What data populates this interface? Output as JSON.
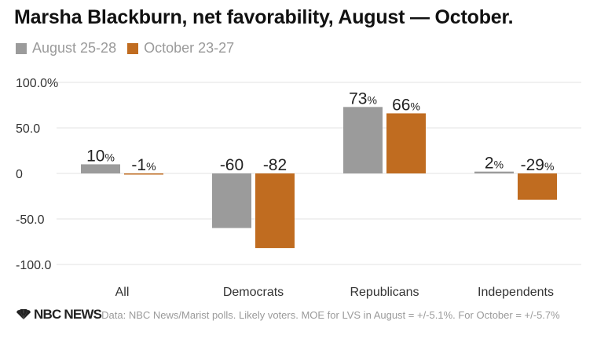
{
  "header": {
    "title": "Marsha Blackburn, net favorability, August — October."
  },
  "footer": {
    "logo_text": "NBC NEWS",
    "source": "Data: NBC News/Marist polls. Likely voters. MOE for LVS in August = +/-5.1%. For October = +/-5.7%"
  },
  "chart_data": {
    "type": "bar",
    "title": "Marsha Blackburn, net favorability, August — October.",
    "xlabel": "",
    "ylabel": "",
    "categories": [
      "All",
      "Democrats",
      "Republicans",
      "Independents"
    ],
    "series": [
      {
        "name": "August 25-28",
        "color": "#9b9b9b",
        "values": [
          10,
          -60,
          73,
          2
        ],
        "labels": [
          {
            "num": "10",
            "unit": "%"
          },
          {
            "num": "-60",
            "unit": ""
          },
          {
            "num": "73",
            "unit": "%"
          },
          {
            "num": "2",
            "unit": "%"
          }
        ]
      },
      {
        "name": "October 23-27",
        "color": "#c06c20",
        "values": [
          -1,
          -82,
          66,
          -29
        ],
        "labels": [
          {
            "num": "-1",
            "unit": "%"
          },
          {
            "num": "-82",
            "unit": ""
          },
          {
            "num": "66",
            "unit": "%"
          },
          {
            "num": "-29",
            "unit": "%"
          }
        ]
      }
    ],
    "ylim": [
      -100,
      100
    ],
    "yticks": [
      {
        "value": 100,
        "label": "100.0%"
      },
      {
        "value": 50,
        "label": "50.0"
      },
      {
        "value": 0,
        "label": "0"
      },
      {
        "value": -50,
        "label": "-50.0"
      },
      {
        "value": -100,
        "label": "-100.0"
      }
    ],
    "grid": true,
    "legend": "top-left"
  }
}
